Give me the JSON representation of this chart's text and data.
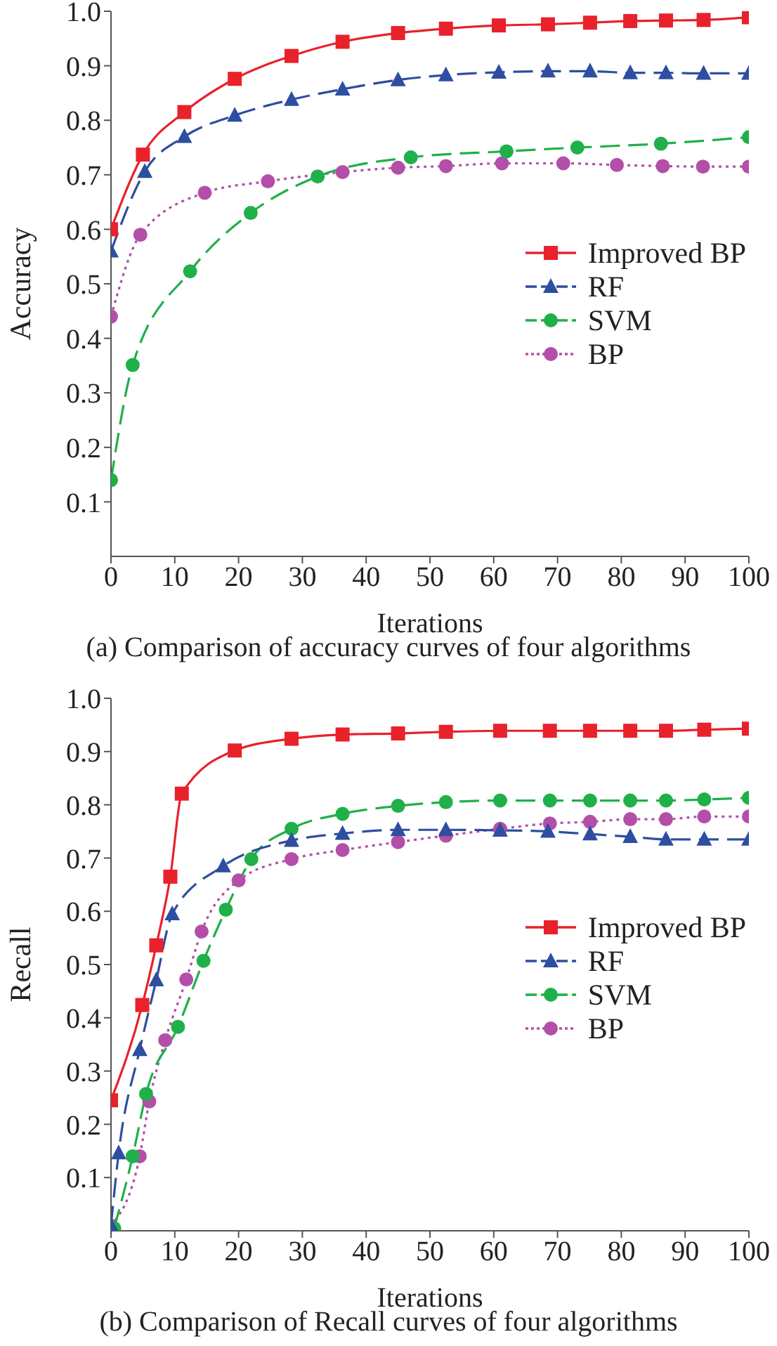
{
  "chart_data": [
    {
      "type": "line",
      "title": "(a) Comparison of accuracy curves of four algorithms",
      "xlabel": "Iterations",
      "ylabel": "Accuracy",
      "xlim": [
        0,
        100
      ],
      "xticks": [
        0,
        10,
        20,
        30,
        40,
        50,
        60,
        70,
        80,
        90,
        100
      ],
      "ylim": [
        0,
        1
      ],
      "yticks": [
        0.1,
        0.2,
        0.3,
        0.4,
        0.5,
        0.6,
        0.7,
        0.8,
        0.9,
        {
          "value": 1,
          "label": "1.0"
        }
      ],
      "legend": "right",
      "series": [
        {
          "name": "Improved BP",
          "color": "#e8212b",
          "marker": "square",
          "line_style": "solid",
          "x": [
            0,
            5,
            11.5,
            19.4,
            28.3,
            36.3,
            45,
            52.5,
            60.8,
            68.5,
            75.1,
            81.4,
            87,
            92.9,
            100
          ],
          "values": [
            0.6,
            0.737,
            0.815,
            0.876,
            0.918,
            0.944,
            0.96,
            0.968,
            0.974,
            0.976,
            0.979,
            0.982,
            0.983,
            0.984,
            0.989
          ]
        },
        {
          "name": "RF",
          "color": "#2e4ea1",
          "marker": "triangle",
          "line_style": "dashed",
          "x": [
            0,
            5.3,
            11.5,
            19.4,
            28.3,
            36.3,
            45,
            52.5,
            60.8,
            68.5,
            75.1,
            81.4,
            87,
            92.9,
            100
          ],
          "values": [
            0.56,
            0.706,
            0.77,
            0.809,
            0.838,
            0.857,
            0.874,
            0.883,
            0.888,
            0.89,
            0.89,
            0.887,
            0.887,
            0.886,
            0.886
          ]
        },
        {
          "name": "SVM",
          "color": "#1fb04a",
          "marker": "circle",
          "line_style": "dashed",
          "x": [
            0,
            3.4,
            12.4,
            21.9,
            32.4,
            47,
            62,
            73.1,
            86.2,
            100
          ],
          "values": [
            0.14,
            0.351,
            0.523,
            0.63,
            0.697,
            0.732,
            0.743,
            0.75,
            0.757,
            0.769
          ]
        },
        {
          "name": "BP",
          "color": "#b34fa8",
          "marker": "circle",
          "line_style": "dotted",
          "x": [
            0,
            4.6,
            14.7,
            24.6,
            36.3,
            45,
            52.5,
            61.3,
            70.9,
            79.3,
            86.5,
            92.8,
            100
          ],
          "values": [
            0.44,
            0.59,
            0.667,
            0.688,
            0.705,
            0.713,
            0.716,
            0.721,
            0.721,
            0.718,
            0.716,
            0.715,
            0.715
          ]
        }
      ]
    },
    {
      "type": "line",
      "title": "(b) Comparison of Recall curves of four algorithms",
      "xlabel": "Iterations",
      "ylabel": "Recall",
      "xlim": [
        0,
        100
      ],
      "xticks": [
        0,
        10,
        20,
        30,
        40,
        50,
        60,
        70,
        80,
        90,
        100
      ],
      "ylim": [
        0,
        1
      ],
      "yticks": [
        0.1,
        0.2,
        0.3,
        0.4,
        0.5,
        0.6,
        0.7,
        0.8,
        0.9,
        {
          "value": 1,
          "label": "1.0"
        }
      ],
      "legend": "right",
      "series": [
        {
          "name": "Improved BP",
          "color": "#e8212b",
          "marker": "square",
          "line_style": "solid",
          "x": [
            0,
            4.9,
            7.1,
            9.3,
            11.1,
            19.4,
            28.3,
            36.3,
            45,
            52.5,
            61,
            68.8,
            75.1,
            81.4,
            87,
            93,
            100
          ],
          "values": [
            0.245,
            0.424,
            0.536,
            0.665,
            0.821,
            0.902,
            0.924,
            0.932,
            0.934,
            0.937,
            0.939,
            0.939,
            0.939,
            0.939,
            0.939,
            0.941,
            0.943
          ]
        },
        {
          "name": "RF",
          "color": "#2e4ea1",
          "marker": "triangle",
          "line_style": "dashed",
          "x": [
            0,
            1.2,
            4.5,
            7.1,
            9.6,
            17.6,
            28.3,
            36.3,
            45,
            52.5,
            61,
            68.5,
            75.1,
            81.4,
            87,
            93,
            100
          ],
          "values": [
            0.01,
            0.146,
            0.34,
            0.471,
            0.595,
            0.685,
            0.733,
            0.746,
            0.753,
            0.753,
            0.752,
            0.75,
            0.745,
            0.74,
            0.735,
            0.735,
            0.735
          ]
        },
        {
          "name": "SVM",
          "color": "#1fb04a",
          "marker": "circle",
          "line_style": "dashed",
          "x": [
            0.5,
            3.4,
            5.5,
            10.5,
            14.5,
            18,
            22,
            28.3,
            36.3,
            45,
            52.5,
            61,
            68.8,
            75.1,
            81.4,
            87,
            93,
            100
          ],
          "values": [
            0.005,
            0.14,
            0.257,
            0.383,
            0.507,
            0.603,
            0.698,
            0.755,
            0.783,
            0.798,
            0.805,
            0.808,
            0.808,
            0.808,
            0.808,
            0.808,
            0.81,
            0.813
          ]
        },
        {
          "name": "BP",
          "color": "#b34fa8",
          "marker": "circle",
          "line_style": "dotted",
          "x": [
            0,
            4.5,
            6,
            8.5,
            11.8,
            14.2,
            20,
            28.3,
            36.3,
            45,
            52.5,
            61,
            68.8,
            75.1,
            81.4,
            87,
            93,
            100
          ],
          "values": [
            0.01,
            0.14,
            0.243,
            0.358,
            0.472,
            0.562,
            0.658,
            0.698,
            0.715,
            0.73,
            0.742,
            0.755,
            0.765,
            0.768,
            0.773,
            0.773,
            0.778,
            0.778
          ]
        }
      ]
    }
  ]
}
